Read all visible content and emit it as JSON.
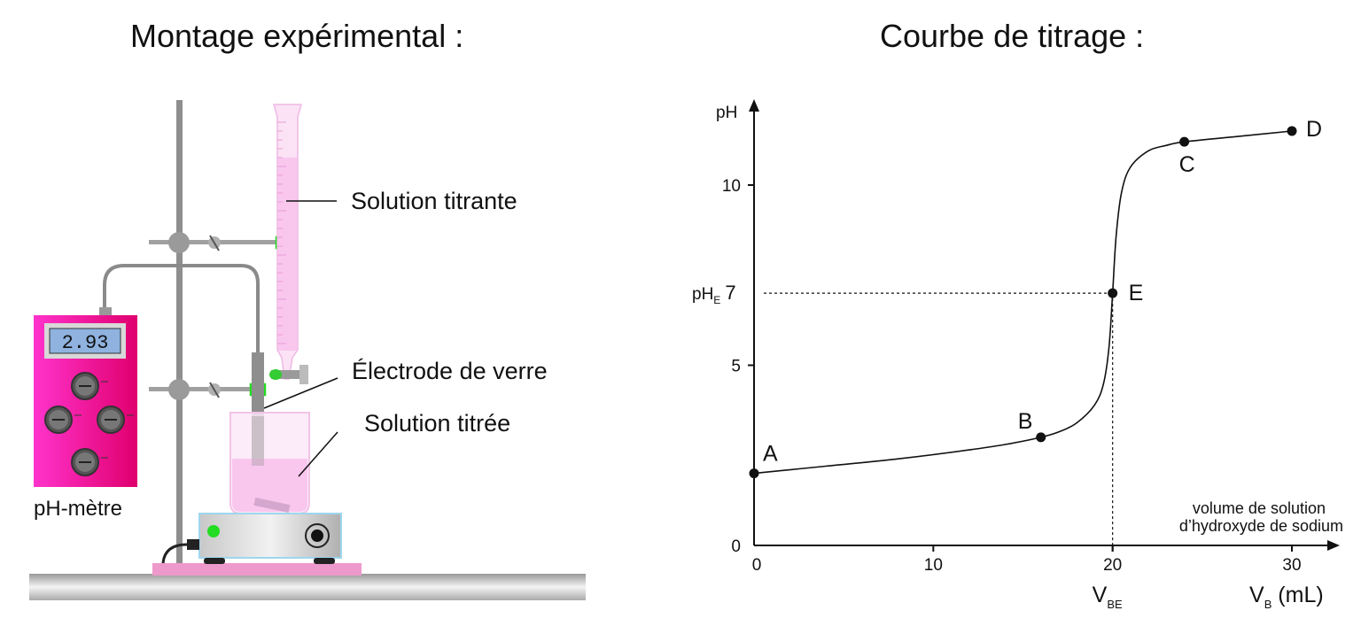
{
  "left_title": "Montage expérimental :",
  "right_title": "Courbe de titrage :",
  "apparatus": {
    "meter_display": "2.93",
    "meter_label": "pH-mètre",
    "burette_label": "Solution titrante",
    "electrode_label": "Électrode de verre",
    "beaker_label": "Solution titrée",
    "colors": {
      "meter_body": "#ee1199",
      "titrant": "#f9c6ee",
      "base_plate": "#ee99cc",
      "stir_led": "#22dd22"
    }
  },
  "chart_data": {
    "type": "line",
    "title": "Courbe de titrage :",
    "xlabel": "V_B (mL)",
    "ylabel": "pH",
    "x_annotation": "volume de solution d’hydroxyde de sodium",
    "xlim": [
      0,
      32
    ],
    "ylim": [
      0,
      12.5
    ],
    "x_ticks": [
      0,
      10,
      20,
      30
    ],
    "y_ticks": [
      0,
      5,
      10
    ],
    "y_extra_label": {
      "prefix": "pH",
      "sub": "E",
      "value": "7"
    },
    "x_extra_label": {
      "prefix": "V",
      "sub": "BE"
    },
    "equivalence": {
      "x": 20,
      "y": 7
    },
    "series": [
      {
        "x": [
          0,
          4,
          8,
          12,
          14,
          16,
          17,
          18,
          19,
          19.5,
          19.8,
          20,
          20.2,
          20.5,
          21,
          22,
          23,
          24,
          27,
          30
        ],
        "y": [
          2,
          2.2,
          2.4,
          2.65,
          2.8,
          3.0,
          3.15,
          3.4,
          3.9,
          4.5,
          5.5,
          7.0,
          8.6,
          9.8,
          10.5,
          10.95,
          11.1,
          11.2,
          11.35,
          11.5
        ]
      }
    ],
    "points": [
      {
        "label": "A",
        "x": 0,
        "y": 2.0
      },
      {
        "label": "B",
        "x": 16,
        "y": 3.0
      },
      {
        "label": "E",
        "x": 20,
        "y": 7.0
      },
      {
        "label": "C",
        "x": 24,
        "y": 11.2
      },
      {
        "label": "D",
        "x": 30,
        "y": 11.5
      }
    ]
  }
}
